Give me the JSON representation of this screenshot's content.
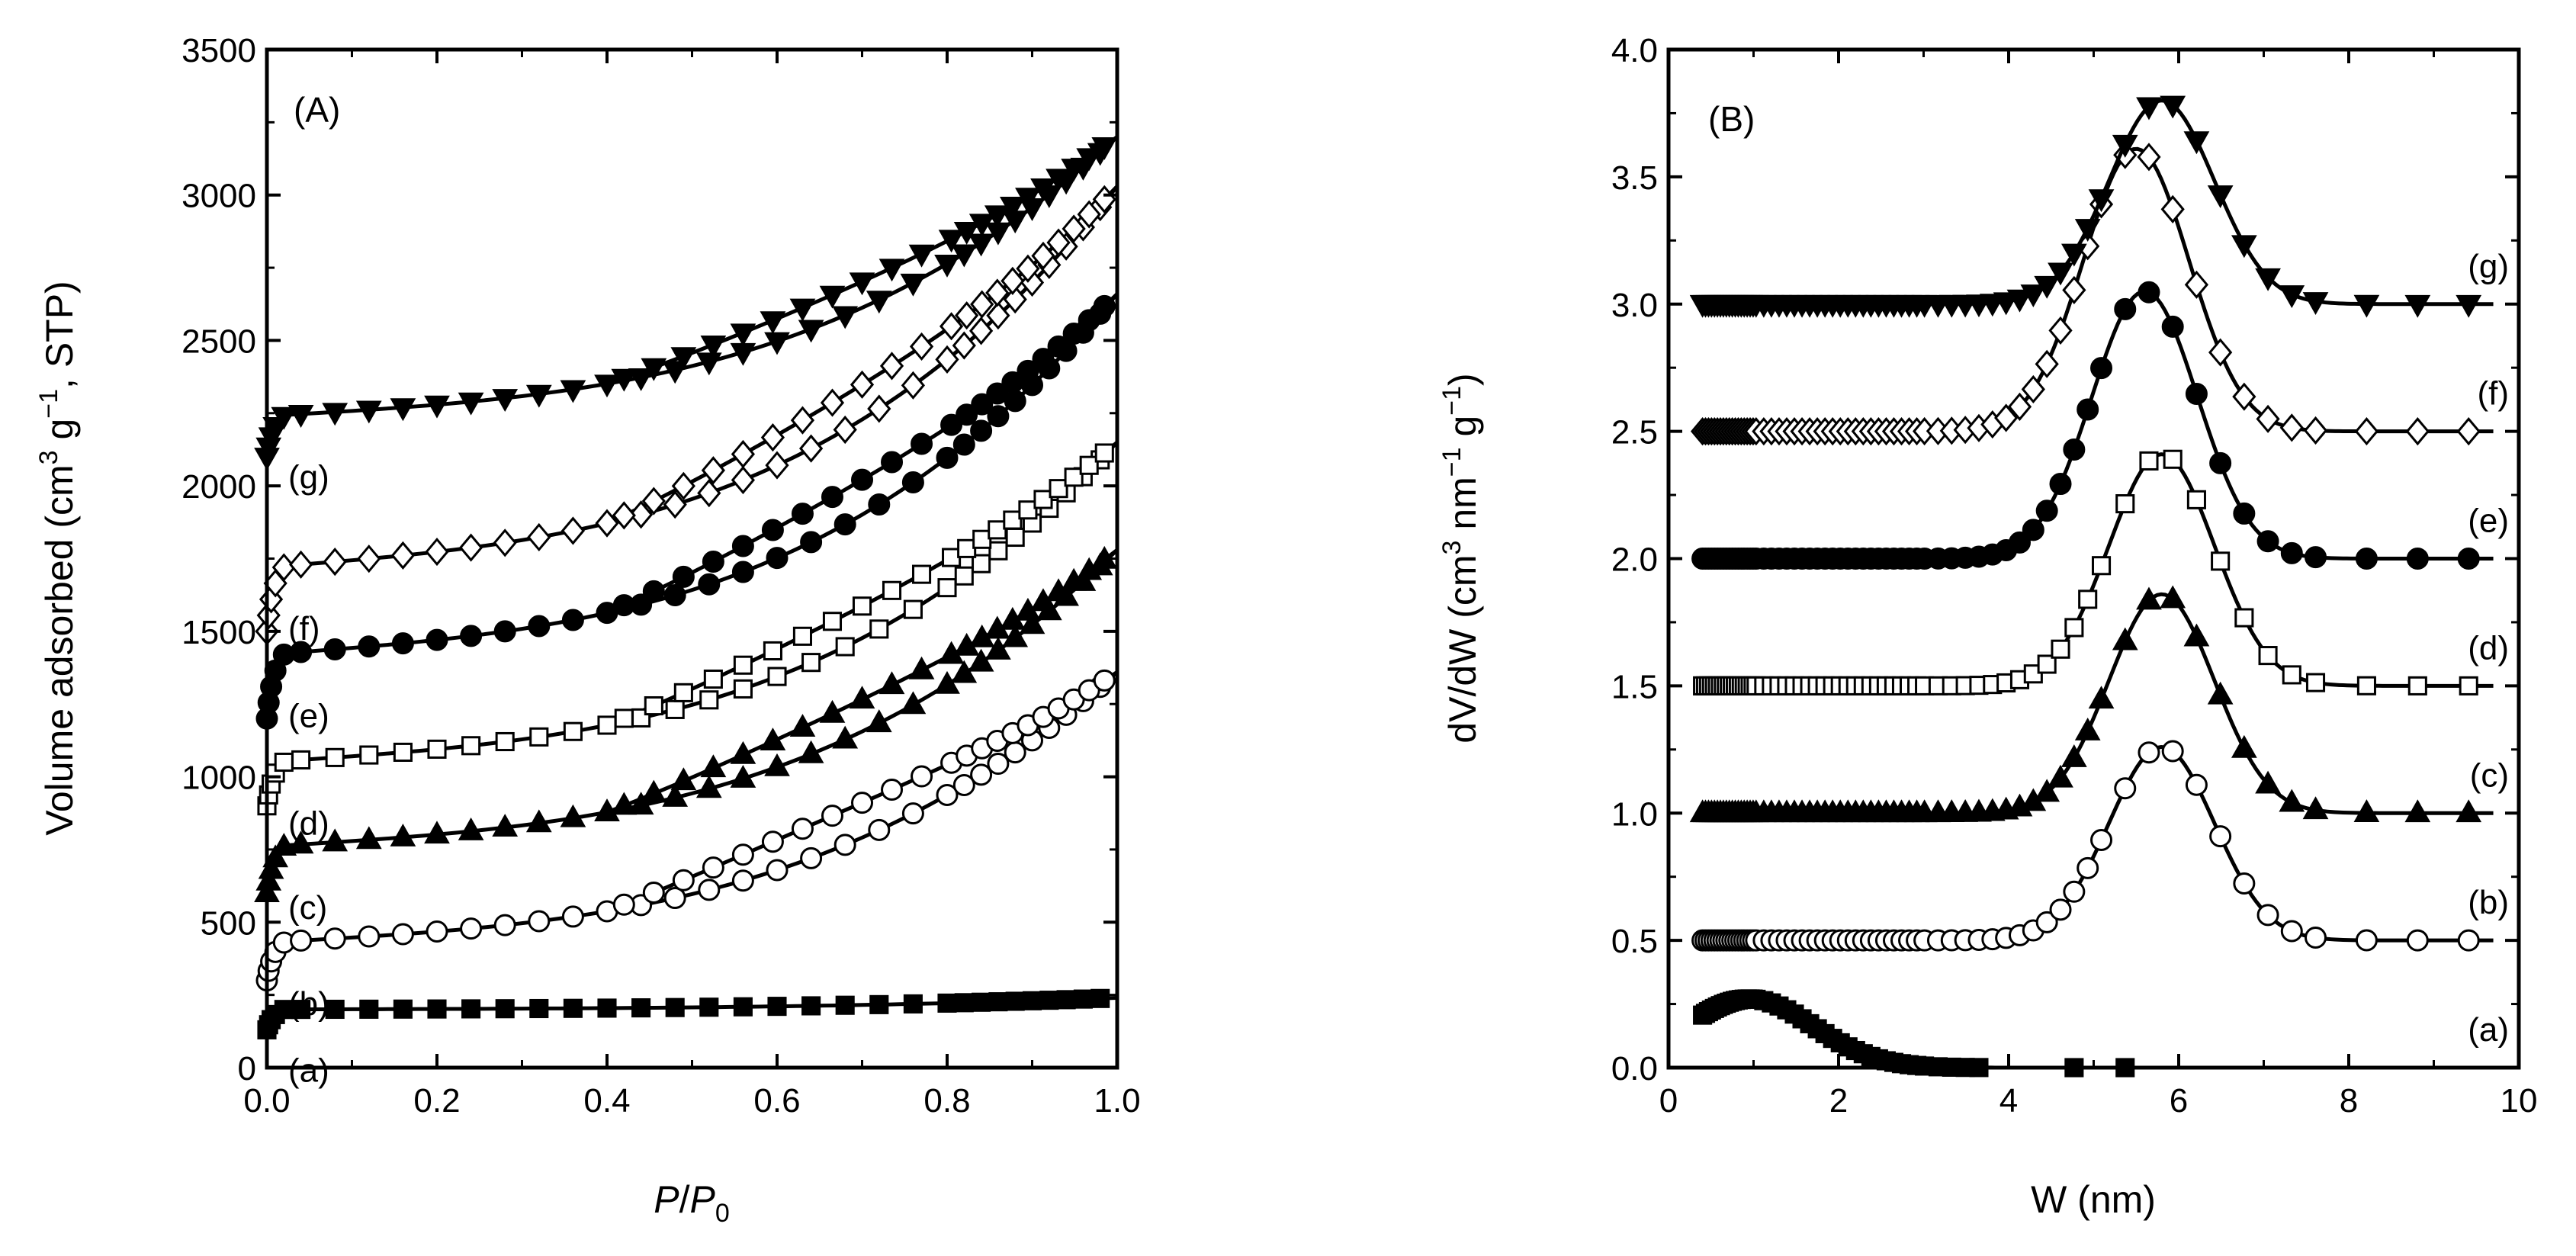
{
  "chart_data": [
    {
      "panel": "A",
      "type": "line",
      "panel_label": "(A)",
      "xlabel": {
        "italic1": "P",
        "sep": "/",
        "italic2": "P",
        "sub": "0"
      },
      "ylabel": {
        "part1": "Volume adsorbed (cm",
        "sup1": "3",
        "part2": " g",
        "sup2": "−1",
        "part3": ", STP)"
      },
      "xlim": [
        0,
        1
      ],
      "ylim": [
        0,
        3500
      ],
      "xticks": [
        "0.0",
        "0.2",
        "0.4",
        "0.6",
        "0.8",
        "1.0"
      ],
      "yticks": [
        "0",
        "500",
        "1000",
        "1500",
        "2000",
        "2500",
        "3000",
        "3500"
      ],
      "series": [
        {
          "name": "(a)",
          "marker": "square",
          "filled": true,
          "start": 200,
          "end": 240,
          "bulge": 0,
          "low": 130
        },
        {
          "name": "(b)",
          "marker": "circle",
          "filled": false,
          "start": 430,
          "end": 1360,
          "bulge": 120,
          "low": 300
        },
        {
          "name": "(c)",
          "marker": "triangle",
          "filled": true,
          "start": 760,
          "end": 1780,
          "bulge": 110,
          "low": 600
        },
        {
          "name": "(d)",
          "marker": "square",
          "filled": false,
          "start": 1050,
          "end": 2150,
          "bulge": 110,
          "low": 900
        },
        {
          "name": "(e)",
          "marker": "circle",
          "filled": true,
          "start": 1420,
          "end": 2660,
          "bulge": 120,
          "low": 1200
        },
        {
          "name": "(f)",
          "marker": "diamond",
          "filled": false,
          "start": 1720,
          "end": 3030,
          "bulge": 120,
          "low": 1500
        },
        {
          "name": "(g)",
          "marker": "triangle-down",
          "filled": true,
          "start": 2240,
          "end": 3200,
          "bulge": 90,
          "low": 2100
        }
      ]
    },
    {
      "panel": "B",
      "type": "line",
      "panel_label": "(B)",
      "xlabel": "W (nm)",
      "ylabel": {
        "part1": "dV/dW (cm",
        "sup1": "3",
        "part2": " nm",
        "sup2": "−1",
        "part3": " g",
        "sup3": "−1",
        "part4": ")"
      },
      "xlim": [
        0,
        10
      ],
      "ylim": [
        0,
        4
      ],
      "xticks": [
        "0",
        "2",
        "4",
        "6",
        "8",
        "10"
      ],
      "yticks": [
        "0.0",
        "0.5",
        "1.0",
        "1.5",
        "2.0",
        "2.5",
        "3.0",
        "3.5",
        "4.0"
      ],
      "series": [
        {
          "name": "(a)",
          "marker": "square",
          "filled": true,
          "baseline": 0,
          "peak_x": 0.95,
          "peak_height": 0.27,
          "width": 0.75
        },
        {
          "name": "(b)",
          "marker": "circle",
          "filled": false,
          "baseline": 0.5,
          "peak_x": 5.8,
          "peak_height": 0.76,
          "width": 0.62
        },
        {
          "name": "(c)",
          "marker": "triangle",
          "filled": true,
          "baseline": 1.0,
          "peak_x": 5.8,
          "peak_height": 0.86,
          "width": 0.62
        },
        {
          "name": "(d)",
          "marker": "square",
          "filled": false,
          "baseline": 1.5,
          "peak_x": 5.8,
          "peak_height": 0.91,
          "width": 0.62
        },
        {
          "name": "(e)",
          "marker": "circle",
          "filled": true,
          "baseline": 2.0,
          "peak_x": 5.6,
          "peak_height": 1.05,
          "width": 0.62
        },
        {
          "name": "(f)",
          "marker": "diamond",
          "filled": false,
          "baseline": 2.5,
          "peak_x": 5.5,
          "peak_height": 1.11,
          "width": 0.62
        },
        {
          "name": "(g)",
          "marker": "triangle-down",
          "filled": true,
          "baseline": 3.0,
          "peak_x": 5.8,
          "peak_height": 0.8,
          "width": 0.62
        }
      ]
    }
  ]
}
